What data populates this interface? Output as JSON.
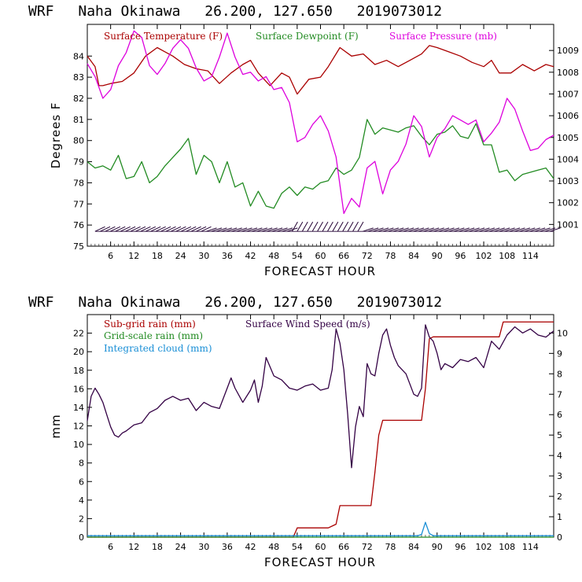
{
  "chart_data": [
    {
      "type": "line",
      "header": {
        "model": "WRF",
        "location": "Naha Okinawa",
        "coords": "26.200, 127.650",
        "init": "2019073012"
      },
      "xlabel": "FORECAST HOUR",
      "ylabel": "Degrees F",
      "xlim": [
        0,
        120
      ],
      "x_ticks": [
        "6",
        "12",
        "18",
        "24",
        "30",
        "36",
        "42",
        "48",
        "54",
        "60",
        "66",
        "72",
        "78",
        "84",
        "90",
        "96",
        "102",
        "108",
        "114"
      ],
      "ylim": [
        75,
        85.5
      ],
      "y_ticks": [
        "75",
        "76",
        "77",
        "78",
        "79",
        "80",
        "81",
        "82",
        "83",
        "84"
      ],
      "y2lim": [
        1000,
        1010.2
      ],
      "y2_ticks": [
        "1001",
        "1002",
        "1003",
        "1004",
        "1005",
        "1006",
        "1007",
        "1008",
        "1009"
      ],
      "series": [
        {
          "name": "Surface Temperature (F)",
          "color": "#aa0000",
          "axis": "left",
          "x": [
            0,
            2,
            3,
            4,
            6,
            9,
            12,
            15,
            18,
            20,
            22,
            25,
            28,
            31,
            34,
            37,
            40,
            42,
            44,
            47,
            50,
            52,
            54,
            57,
            60,
            62,
            65,
            68,
            71,
            74,
            77,
            80,
            83,
            86,
            88,
            90,
            93,
            96,
            99,
            102,
            104,
            106,
            109,
            112,
            115,
            118,
            120
          ],
          "values": [
            84.0,
            83.5,
            82.6,
            82.6,
            82.7,
            82.8,
            83.2,
            84.0,
            84.4,
            84.2,
            84.0,
            83.6,
            83.4,
            83.3,
            82.7,
            83.2,
            83.6,
            83.8,
            83.2,
            82.6,
            83.2,
            83.0,
            82.2,
            82.9,
            83.0,
            83.5,
            84.4,
            84.0,
            84.1,
            83.6,
            83.8,
            83.5,
            83.8,
            84.1,
            84.5,
            84.4,
            84.2,
            84.0,
            83.7,
            83.5,
            83.8,
            83.2,
            83.2,
            83.6,
            83.3,
            83.6,
            83.5
          ]
        },
        {
          "name": "Surface Dewpoint (F)",
          "color": "#228b22",
          "axis": "left",
          "x": [
            0,
            2,
            4,
            6,
            8,
            10,
            12,
            14,
            16,
            18,
            20,
            22,
            24,
            26,
            28,
            30,
            32,
            34,
            36,
            38,
            40,
            42,
            44,
            46,
            48,
            50,
            52,
            54,
            56,
            58,
            60,
            62,
            64,
            66,
            68,
            70,
            72,
            74,
            76,
            78,
            80,
            82,
            84,
            86,
            88,
            90,
            92,
            94,
            96,
            98,
            100,
            102,
            104,
            106,
            108,
            110,
            112,
            114,
            116,
            118,
            120
          ],
          "values": [
            79.0,
            78.7,
            78.8,
            78.6,
            79.3,
            78.2,
            78.3,
            79.0,
            78.0,
            78.3,
            78.8,
            79.2,
            79.6,
            80.1,
            78.4,
            79.3,
            79.0,
            78.0,
            79.0,
            77.8,
            78.0,
            76.9,
            77.6,
            76.9,
            76.8,
            77.5,
            77.8,
            77.4,
            77.8,
            77.7,
            78.0,
            78.1,
            78.7,
            78.4,
            78.6,
            79.2,
            81.0,
            80.3,
            80.6,
            80.5,
            80.4,
            80.6,
            80.7,
            80.2,
            79.8,
            80.3,
            80.4,
            80.7,
            80.2,
            80.1,
            80.8,
            79.8,
            79.8,
            78.5,
            78.6,
            78.1,
            78.4,
            78.5,
            78.6,
            78.7,
            78.2
          ]
        },
        {
          "name": "Surface Pressure (mb)",
          "color": "#dd00dd",
          "axis": "right",
          "x": [
            0,
            2,
            4,
            6,
            8,
            10,
            12,
            14,
            16,
            18,
            20,
            22,
            24,
            26,
            28,
            30,
            32,
            34,
            36,
            38,
            40,
            42,
            44,
            46,
            48,
            50,
            52,
            54,
            56,
            58,
            60,
            62,
            64,
            66,
            68,
            70,
            72,
            74,
            76,
            78,
            80,
            82,
            84,
            86,
            88,
            90,
            92,
            94,
            96,
            98,
            100,
            102,
            104,
            106,
            108,
            110,
            112,
            114,
            116,
            118,
            120
          ],
          "values": [
            1008.4,
            1007.8,
            1006.8,
            1007.2,
            1008.3,
            1008.9,
            1009.9,
            1009.6,
            1008.3,
            1007.9,
            1008.4,
            1009.1,
            1009.5,
            1009.1,
            1008.2,
            1007.6,
            1007.8,
            1008.7,
            1009.8,
            1008.7,
            1007.9,
            1008.0,
            1007.6,
            1007.8,
            1007.2,
            1007.3,
            1006.6,
            1004.8,
            1005.0,
            1005.6,
            1006.0,
            1005.3,
            1004.1,
            1001.5,
            1002.2,
            1001.8,
            1003.6,
            1003.9,
            1002.4,
            1003.5,
            1003.9,
            1004.7,
            1006.0,
            1005.5,
            1004.1,
            1005.0,
            1005.4,
            1006.0,
            1005.8,
            1005.6,
            1005.8,
            1004.8,
            1005.2,
            1005.7,
            1006.8,
            1006.3,
            1005.3,
            1004.4,
            1004.5,
            1004.9,
            1005.1
          ]
        },
        {
          "name": "Wind barbs",
          "color": "#220033",
          "axis": "left",
          "baseline": 75.7,
          "x_start": 2,
          "x_end": 120,
          "x_step": 1.3
        }
      ],
      "legend": [
        "Surface Temperature (F)",
        "Surface Dewpoint (F)",
        "Surface Pressure (mb)"
      ]
    },
    {
      "type": "line",
      "header": {
        "model": "WRF",
        "location": "Naha Okinawa",
        "coords": "26.200, 127.650",
        "init": "2019073012"
      },
      "xlabel": "FORECAST HOUR",
      "ylabel": "mm",
      "xlim": [
        0,
        120
      ],
      "x_ticks": [
        "6",
        "12",
        "18",
        "24",
        "30",
        "36",
        "42",
        "48",
        "54",
        "60",
        "66",
        "72",
        "78",
        "84",
        "90",
        "96",
        "102",
        "108",
        "114"
      ],
      "ylim": [
        0,
        24
      ],
      "y_ticks": [
        "0",
        "2",
        "4",
        "6",
        "8",
        "10",
        "12",
        "14",
        "16",
        "18",
        "20",
        "22"
      ],
      "y2lim": [
        0,
        10.9
      ],
      "y2_ticks": [
        "0",
        "1",
        "2",
        "3",
        "4",
        "5",
        "6",
        "7",
        "8",
        "9",
        "10"
      ],
      "series": [
        {
          "name": "Sub-grid rain (mm)",
          "color": "#aa0000",
          "axis": "left",
          "x": [
            0,
            53,
            54,
            62,
            63,
            64,
            65,
            73,
            74,
            75,
            76,
            86,
            87,
            88,
            89,
            106,
            107,
            120
          ],
          "values": [
            0,
            0,
            1.0,
            1.0,
            1.2,
            1.4,
            3.4,
            3.4,
            7,
            11,
            12.6,
            12.6,
            16,
            21.4,
            21.6,
            21.6,
            23.2,
            23.2
          ]
        },
        {
          "name": "Grid-scale rain (mm)",
          "color": "#228b22",
          "axis": "left",
          "x": [
            0,
            120
          ],
          "values": [
            0,
            0
          ]
        },
        {
          "name": "Integrated cloud (mm)",
          "color": "#1a8fd6",
          "axis": "left",
          "x": [
            0,
            85,
            86,
            87,
            88,
            89,
            120
          ],
          "values": [
            0.15,
            0.15,
            0.3,
            1.6,
            0.4,
            0.15,
            0.15
          ]
        },
        {
          "name": "Surface Wind Speed (m/s)",
          "color": "#330044",
          "axis": "right",
          "x": [
            0,
            1,
            2,
            3,
            4,
            5,
            6,
            7,
            8,
            9,
            10,
            12,
            14,
            16,
            18,
            20,
            22,
            24,
            26,
            28,
            30,
            32,
            34,
            36,
            37,
            38,
            40,
            42,
            43,
            44,
            45,
            46,
            48,
            50,
            52,
            54,
            56,
            58,
            60,
            62,
            63,
            64,
            65,
            66,
            67,
            68,
            69,
            70,
            71,
            72,
            73,
            74,
            75,
            76,
            77,
            78,
            79,
            80,
            82,
            84,
            85,
            86,
            87,
            88,
            89,
            90,
            91,
            92,
            94,
            96,
            98,
            100,
            102,
            104,
            106,
            108,
            110,
            112,
            114,
            116,
            118,
            120
          ],
          "values": [
            5.7,
            6.9,
            7.3,
            7.0,
            6.6,
            6.0,
            5.4,
            5.0,
            4.9,
            5.1,
            5.2,
            5.5,
            5.6,
            6.1,
            6.3,
            6.7,
            6.9,
            6.7,
            6.8,
            6.2,
            6.6,
            6.4,
            6.3,
            7.3,
            7.8,
            7.3,
            6.6,
            7.2,
            7.7,
            6.6,
            7.4,
            8.8,
            7.9,
            7.7,
            7.3,
            7.2,
            7.4,
            7.5,
            7.2,
            7.3,
            8.2,
            10.2,
            9.5,
            8.2,
            6.0,
            3.4,
            5.4,
            6.4,
            5.9,
            8.5,
            8.0,
            7.9,
            9.0,
            9.9,
            10.2,
            9.4,
            8.8,
            8.4,
            8.0,
            7.0,
            6.9,
            7.3,
            10.4,
            9.8,
            9.6,
            9.0,
            8.2,
            8.5,
            8.3,
            8.7,
            8.6,
            8.8,
            8.3,
            9.6,
            9.2,
            9.9,
            10.3,
            10.0,
            10.2,
            9.9,
            9.8,
            10.1
          ]
        }
      ],
      "legend": [
        "Sub-grid rain (mm)",
        "Grid-scale rain (mm)",
        "Integrated cloud (mm)",
        "Surface Wind Speed (m/s)"
      ]
    }
  ]
}
